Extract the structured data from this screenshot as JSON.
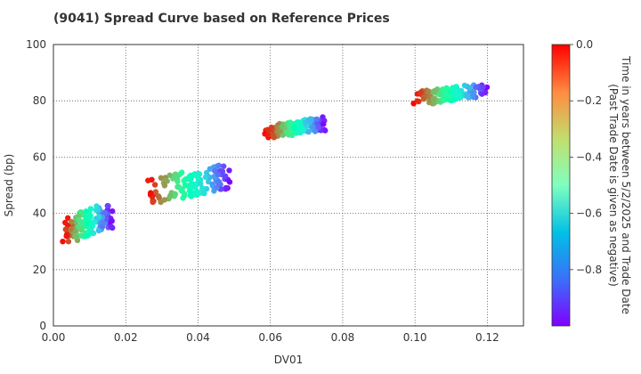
{
  "chart_data": {
    "type": "scatter",
    "title": "(9041)   Spread Curve based on Reference Prices",
    "xlabel": "DV01",
    "ylabel": "Spread (bp)",
    "xlim": [
      0,
      0.13
    ],
    "ylim": [
      0,
      100
    ],
    "x_ticks": [
      "0.00",
      "0.02",
      "0.04",
      "0.06",
      "0.08",
      "0.10",
      "0.12"
    ],
    "y_ticks": [
      "0",
      "20",
      "40",
      "60",
      "80",
      "100"
    ],
    "grid": true,
    "colorbar": {
      "label_line1": "Time in years between 5/2/2025 and Trade Date",
      "label_line2": "(Past Trade Date is given as negative)",
      "range": [
        -1.0,
        0.0
      ],
      "ticks": [
        "0.0",
        "−0.2",
        "−0.4",
        "−0.6",
        "−0.8"
      ],
      "colormap": "rainbow"
    },
    "clusters": [
      {
        "x_range": [
          0.003,
          0.016
        ],
        "y_range": [
          30,
          48
        ],
        "t_range": [
          -1.0,
          0.0
        ]
      },
      {
        "x_range": [
          0.026,
          0.049
        ],
        "y_range": [
          44,
          61
        ],
        "t_range": [
          -1.0,
          0.0
        ]
      },
      {
        "x_range": [
          0.059,
          0.075
        ],
        "y_range": [
          67,
          76
        ],
        "t_range": [
          -1.0,
          0.0
        ]
      },
      {
        "x_range": [
          0.1,
          0.12
        ],
        "y_range": [
          79,
          88
        ],
        "t_range": [
          -1.0,
          0.0
        ]
      }
    ]
  }
}
